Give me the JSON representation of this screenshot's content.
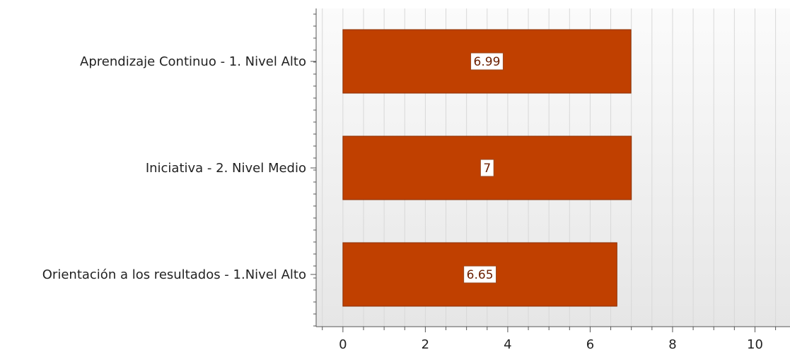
{
  "chart_data": {
    "type": "bar",
    "orientation": "horizontal",
    "categories": [
      "Aprendizaje Continuo - 1. Nivel Alto",
      "Iniciativa - 2. Nivel Medio",
      "Orientación a los resultados - 1.Nivel Alto"
    ],
    "values": [
      6.99,
      7,
      6.65
    ],
    "data_labels": [
      "6.99",
      "7",
      "6.65"
    ],
    "xlim": [
      -0.65,
      10.85
    ],
    "xticks": [
      0,
      2,
      4,
      6,
      8,
      10
    ],
    "xtick_labels": [
      "0",
      "2",
      "4",
      "6",
      "8",
      "10"
    ],
    "grid": true,
    "title": "",
    "xlabel": "",
    "ylabel": "",
    "colors": {
      "bar_fill": "#c04000",
      "bar_stroke": "#8a2e00",
      "label_bg": "#ffffff",
      "label_text": "#6b1f00",
      "plot_bg_light": "#fbfbfb",
      "plot_bg_dark": "#e6e6e6",
      "grid": "#d8d8d8",
      "axis": "#555555"
    }
  }
}
